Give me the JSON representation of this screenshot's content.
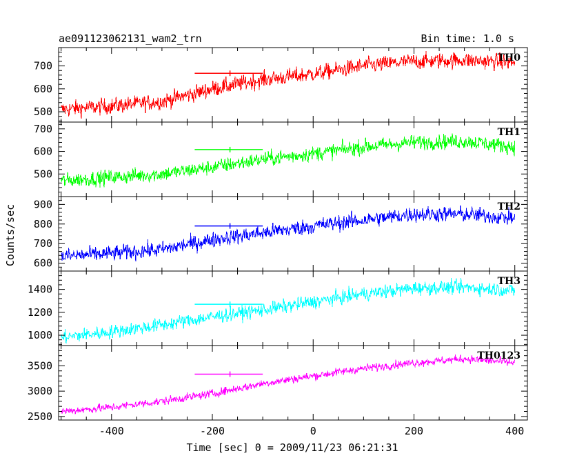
{
  "chart_data": {
    "type": "line",
    "title": "ae091123062131_wam2_trn",
    "subtitle": "Bin time: 1.0 s",
    "xlabel": "Time [sec] 0 = 2009/11/23 06:21:31",
    "ylabel": "Counts/sec",
    "xlim": [
      -505,
      425
    ],
    "x_ticks": [
      -400,
      -200,
      0,
      200,
      400
    ],
    "x_range": [
      -500,
      400
    ],
    "grid": false,
    "panels": [
      {
        "name": "TH0",
        "color": "#ff0000",
        "ylim": [
          455,
          780
        ],
        "y_ticks": [
          500,
          600,
          700
        ],
        "x": [
          -500,
          -400,
          -300,
          -200,
          -100,
          0,
          100,
          200,
          300,
          400
        ],
        "values": [
          510,
          525,
          545,
          600,
          640,
          665,
          700,
          720,
          725,
          715
        ],
        "noise": 35,
        "mean_marker": {
          "x_start": -235,
          "x_end": -100,
          "x_mid": -165,
          "value": 668
        }
      },
      {
        "name": "TH1",
        "color": "#00ff00",
        "ylim": [
          400,
          730
        ],
        "y_ticks": [
          500,
          600,
          700
        ],
        "x": [
          -500,
          -400,
          -300,
          -200,
          -100,
          0,
          100,
          200,
          300,
          400
        ],
        "values": [
          470,
          485,
          500,
          530,
          565,
          590,
          620,
          640,
          645,
          620
        ],
        "noise": 33,
        "mean_marker": {
          "x_start": -235,
          "x_end": -100,
          "x_mid": -165,
          "value": 608
        }
      },
      {
        "name": "TH2",
        "color": "#0000ff",
        "ylim": [
          560,
          940
        ],
        "y_ticks": [
          600,
          700,
          800,
          900
        ],
        "x": [
          -500,
          -400,
          -300,
          -200,
          -100,
          0,
          100,
          200,
          300,
          400
        ],
        "values": [
          635,
          650,
          670,
          720,
          755,
          790,
          820,
          850,
          850,
          830
        ],
        "noise": 40,
        "mean_marker": {
          "x_start": -235,
          "x_end": -100,
          "x_mid": -165,
          "value": 790
        }
      },
      {
        "name": "TH3",
        "color": "#00ffff",
        "ylim": [
          910,
          1560
        ],
        "y_ticks": [
          1000,
          1200,
          1400
        ],
        "x": [
          -500,
          -400,
          -300,
          -200,
          -100,
          0,
          100,
          200,
          300,
          400
        ],
        "values": [
          980,
          1030,
          1090,
          1160,
          1220,
          1290,
          1360,
          1410,
          1420,
          1390
        ],
        "noise": 60,
        "mean_marker": {
          "x_start": -235,
          "x_end": -100,
          "x_mid": -165,
          "value": 1270
        }
      },
      {
        "name": "TH0123",
        "color": "#ff00ff",
        "ylim": [
          2430,
          3900
        ],
        "y_ticks": [
          2500,
          3000,
          3500
        ],
        "x": [
          -500,
          -400,
          -300,
          -200,
          -100,
          0,
          100,
          200,
          300,
          400
        ],
        "values": [
          2600,
          2680,
          2800,
          2950,
          3150,
          3300,
          3450,
          3560,
          3640,
          3560
        ],
        "noise": 80,
        "mean_marker": {
          "x_start": -235,
          "x_end": -100,
          "x_mid": -165,
          "value": 3335
        }
      }
    ]
  }
}
